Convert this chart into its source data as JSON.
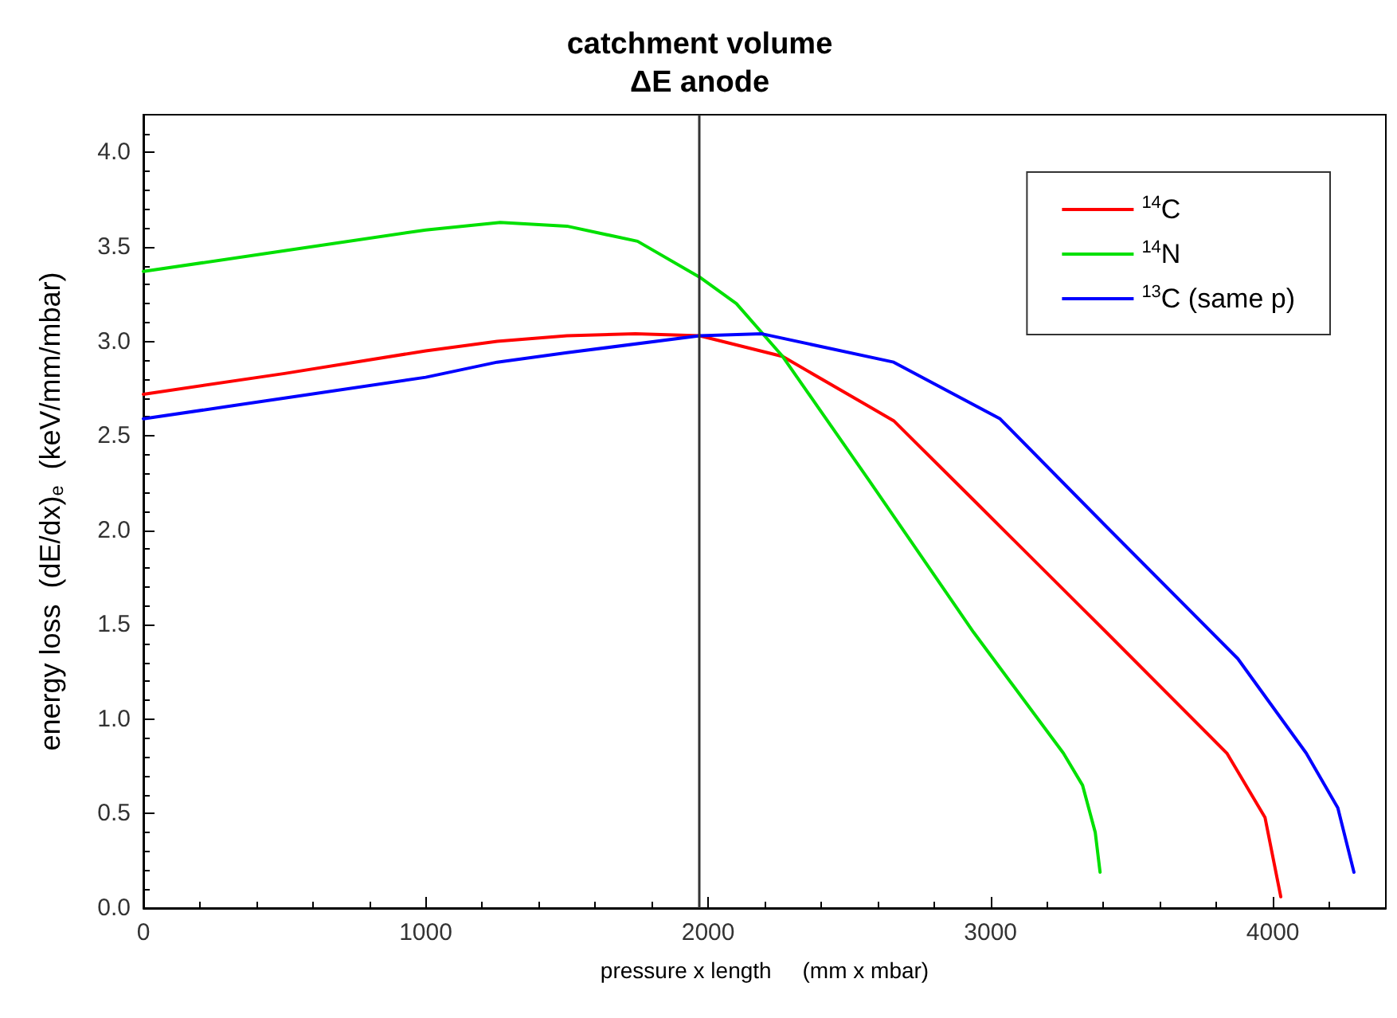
{
  "chart_data": {
    "type": "line",
    "xlabel": "pressure x length     (mm x mbar)",
    "ylabel": "energy loss  (dE/dx)$_{e}$  (keV/mm/mbar)",
    "xlim": [
      0,
      4400
    ],
    "xticks": [
      0,
      1000,
      2000,
      3000,
      4000
    ],
    "ylim": [
      0,
      4.2
    ],
    "yticks": [
      {
        "value": 0,
        "label": "0.0"
      },
      {
        "value": 0.5,
        "label": "0.5"
      },
      {
        "value": 1,
        "label": "1.0"
      },
      {
        "value": 1.5,
        "label": "1.5"
      },
      {
        "value": 2,
        "label": "2.0"
      },
      {
        "value": 2.5,
        "label": "2.5"
      },
      {
        "value": 3,
        "label": "3.0"
      },
      {
        "value": 3.5,
        "label": "3.5"
      },
      {
        "value": 4,
        "label": "4.0"
      }
    ],
    "grid": false,
    "legend": "top right",
    "marker": "none",
    "line_style": "solid",
    "ref_lines": [
      {
        "axis": "x",
        "value": 1970,
        "label": "catchment volume\nΔE anode",
        "color": "#333333"
      }
    ],
    "series": [
      {
        "name": "$^{14}$C",
        "color": "#ff0000",
        "x": [
          0,
          500,
          1000,
          1253,
          1500,
          1742,
          1970,
          2264,
          2657,
          2940,
          3410,
          3837,
          3972,
          4028
        ],
        "values": [
          2.72,
          2.83,
          2.95,
          3.0,
          3.03,
          3.04,
          3.03,
          2.92,
          2.58,
          2.16,
          1.46,
          0.82,
          0.48,
          0.06
        ]
      },
      {
        "name": "$^{14}$N",
        "color": "#00e000",
        "x": [
          0,
          500,
          1000,
          1264,
          1500,
          1750,
          1970,
          2100,
          2264,
          2567,
          2940,
          3258,
          3326,
          3371,
          3388
        ],
        "values": [
          3.37,
          3.48,
          3.59,
          3.63,
          3.61,
          3.53,
          3.34,
          3.2,
          2.92,
          2.27,
          1.46,
          0.82,
          0.65,
          0.4,
          0.19
        ]
      },
      {
        "name": "$^{13}$C (same p)",
        "color": "#0000ff",
        "x": [
          0,
          500,
          1000,
          1253,
          1500,
          1970,
          2191,
          2657,
          3034,
          3410,
          3876,
          4118,
          4230,
          4287
        ],
        "values": [
          2.59,
          2.7,
          2.81,
          2.89,
          2.94,
          3.03,
          3.04,
          2.89,
          2.59,
          2.02,
          1.32,
          0.82,
          0.53,
          0.19
        ]
      }
    ]
  }
}
